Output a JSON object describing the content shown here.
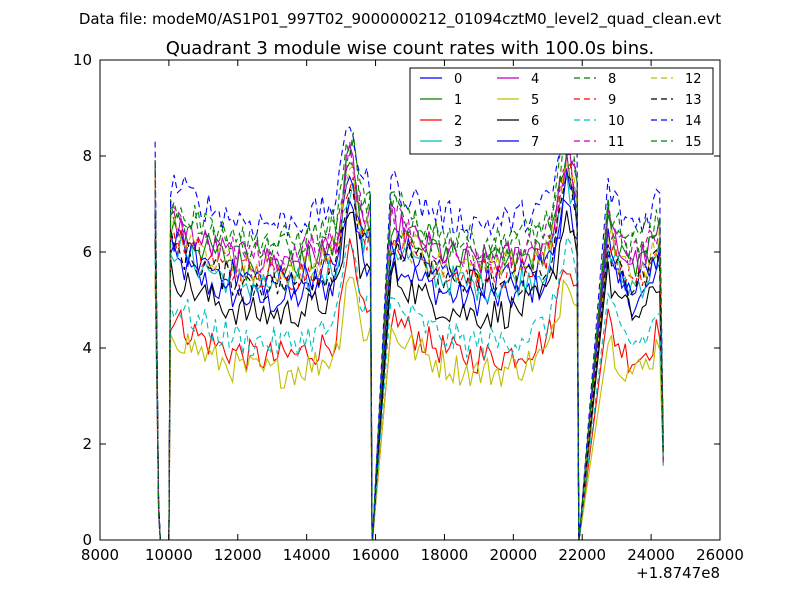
{
  "figure": {
    "suptitle": "Data file: modeM0/AS1P01_997T02_9000000212_01094cztM0_level2_quad_clean.evt",
    "title": "Quadrant 3 module wise count rates with 100.0s bins."
  },
  "chart_data": {
    "type": "line",
    "title": "Quadrant 3 module wise count rates with 100.0s bins.",
    "xlabel": "",
    "ylabel": "",
    "x_offset_label": "+1.8747e8",
    "xlim": [
      8000,
      26000
    ],
    "ylim": [
      0,
      10
    ],
    "x_ticks": [
      8000,
      10000,
      12000,
      14000,
      16000,
      18000,
      20000,
      22000,
      24000,
      26000
    ],
    "x_tick_labels": [
      "8000",
      "10000",
      "12000",
      "14000",
      "16000",
      "18000",
      "20000",
      "22000",
      "24000",
      "26000"
    ],
    "y_ticks": [
      0,
      2,
      4,
      6,
      8,
      10
    ],
    "y_tick_labels": [
      "0",
      "2",
      "4",
      "6",
      "8",
      "10"
    ],
    "grid": false,
    "legend": {
      "placement": "top-right",
      "columns": 4
    },
    "gaps": [
      [
        9750,
        10000
      ],
      [
        15900,
        16400
      ],
      [
        21900,
        22700
      ]
    ],
    "segments": [
      [
        9600,
        9750
      ],
      [
        10000,
        15900
      ],
      [
        16400,
        21900
      ],
      [
        22700,
        24350
      ]
    ],
    "series": [
      {
        "name": "0",
        "color": "#0000ff",
        "dashed": false,
        "mean_level": 5.3
      },
      {
        "name": "1",
        "color": "#008000",
        "dashed": false,
        "mean_level": 6.0
      },
      {
        "name": "2",
        "color": "#ff0000",
        "dashed": false,
        "mean_level": 4.1
      },
      {
        "name": "3",
        "color": "#00bfbf",
        "dashed": false,
        "mean_level": 5.6
      },
      {
        "name": "4",
        "color": "#bf00bf",
        "dashed": false,
        "mean_level": 6.1
      },
      {
        "name": "5",
        "color": "#bfbf00",
        "dashed": false,
        "mean_level": 3.8
      },
      {
        "name": "6",
        "color": "#000000",
        "dashed": false,
        "mean_level": 5.0
      },
      {
        "name": "7",
        "color": "#0000ff",
        "dashed": false,
        "mean_level": 5.7
      },
      {
        "name": "8",
        "color": "#008000",
        "dashed": true,
        "mean_level": 6.4
      },
      {
        "name": "9",
        "color": "#ff0000",
        "dashed": true,
        "mean_level": 5.8
      },
      {
        "name": "10",
        "color": "#00bfbf",
        "dashed": true,
        "mean_level": 4.4
      },
      {
        "name": "11",
        "color": "#bf00bf",
        "dashed": true,
        "mean_level": 6.2
      },
      {
        "name": "12",
        "color": "#bfbf00",
        "dashed": true,
        "mean_level": 5.9
      },
      {
        "name": "13",
        "color": "#000000",
        "dashed": true,
        "mean_level": 5.6
      },
      {
        "name": "14",
        "color": "#0000ff",
        "dashed": true,
        "mean_level": 6.9
      },
      {
        "name": "15",
        "color": "#008000",
        "dashed": true,
        "mean_level": 6.5
      }
    ]
  }
}
